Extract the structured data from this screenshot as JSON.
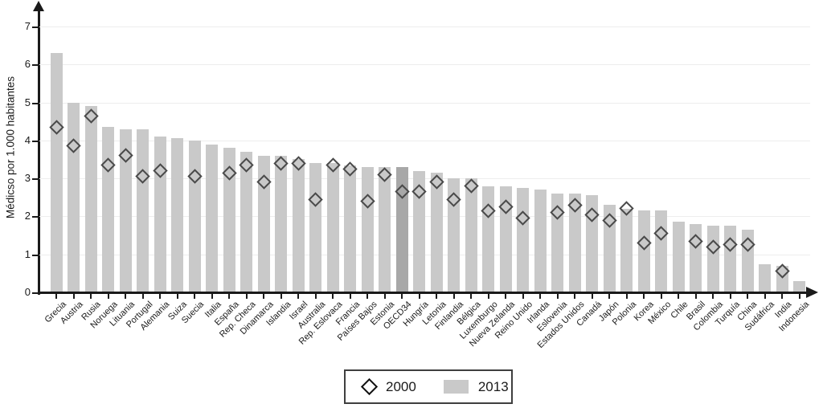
{
  "chart_data": {
    "type": "bar",
    "title": "",
    "xlabel": "",
    "ylabel": "Médicso por 1.000 habitantes",
    "ylim": [
      0,
      7
    ],
    "yticks": [
      0,
      1,
      2,
      3,
      4,
      5,
      6,
      7
    ],
    "grid": true,
    "legend_position": "bottom-center",
    "highlight_category": "OECD34",
    "categories": [
      "Grecia",
      "Austria",
      "Rusia",
      "Noruega",
      "Lituania",
      "Portugal",
      "Alemania",
      "Suiza",
      "Suecia",
      "Italia",
      "España",
      "Rep. Checa",
      "Dinamarca",
      "Islandia",
      "Israel",
      "Australia",
      "Rep. Eslovaca",
      "Francia",
      "Países Bajos",
      "Estonia",
      "OECD34",
      "Hungría",
      "Letonia",
      "Finlandia",
      "Bélgica",
      "Luxemburgo",
      "Nueva Zelanda",
      "Reino Unido",
      "Irlanda",
      "Eslovenia",
      "Estados Unidos",
      "Canadá",
      "Japón",
      "Polonia",
      "Korea",
      "México",
      "Chile",
      "Brasil",
      "Colombia",
      "Turquía",
      "China",
      "Sudáfrica",
      "India",
      "Indonesia"
    ],
    "series": [
      {
        "name": "2000",
        "type": "scatter",
        "marker": "diamond-outline",
        "values": [
          4.35,
          3.85,
          4.65,
          3.35,
          3.6,
          3.05,
          3.2,
          null,
          3.05,
          null,
          3.15,
          3.35,
          2.9,
          3.4,
          3.4,
          2.45,
          3.35,
          3.25,
          2.4,
          3.1,
          2.65,
          2.65,
          2.9,
          2.45,
          2.8,
          2.15,
          2.25,
          1.95,
          null,
          2.1,
          2.3,
          2.05,
          1.9,
          2.2,
          1.3,
          1.55,
          null,
          1.35,
          1.2,
          1.25,
          1.25,
          null,
          0.55,
          null
        ]
      },
      {
        "name": "2013",
        "type": "bar",
        "values": [
          6.3,
          5.0,
          4.9,
          4.35,
          4.3,
          4.3,
          4.1,
          4.05,
          4.0,
          3.9,
          3.8,
          3.7,
          3.6,
          3.6,
          3.5,
          3.4,
          3.4,
          3.35,
          3.3,
          3.3,
          3.3,
          3.2,
          3.15,
          3.0,
          3.0,
          2.8,
          2.8,
          2.75,
          2.7,
          2.6,
          2.6,
          2.55,
          2.3,
          2.2,
          2.15,
          2.15,
          1.85,
          1.8,
          1.75,
          1.75,
          1.65,
          0.75,
          0.7,
          0.3
        ]
      }
    ],
    "colors": {
      "bar": "#c9c9c9",
      "bar_highlight": "#a8a8a8",
      "marker_stroke": "#4a4a4a",
      "axis": "#1a1a1a",
      "gridline": "#ededed"
    }
  }
}
